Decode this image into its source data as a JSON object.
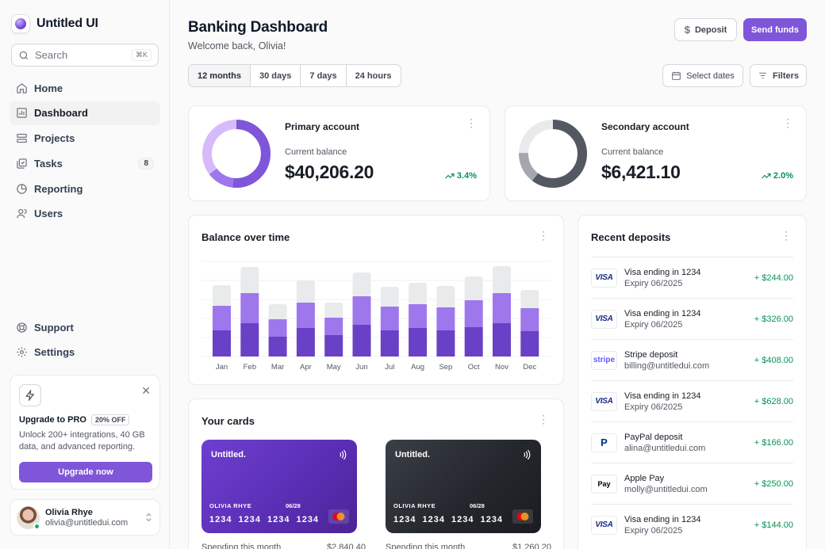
{
  "brand": {
    "name": "Untitled UI"
  },
  "search": {
    "placeholder": "Search",
    "shortcut": "⌘K"
  },
  "nav": [
    {
      "label": "Home",
      "icon": "home-icon"
    },
    {
      "label": "Dashboard",
      "icon": "bar-chart-icon",
      "active": true
    },
    {
      "label": "Projects",
      "icon": "layers-icon"
    },
    {
      "label": "Tasks",
      "icon": "check-square-icon",
      "badge": "8"
    },
    {
      "label": "Reporting",
      "icon": "pie-chart-icon"
    },
    {
      "label": "Users",
      "icon": "users-icon"
    }
  ],
  "nav_footer": [
    {
      "label": "Support",
      "icon": "life-buoy-icon"
    },
    {
      "label": "Settings",
      "icon": "gear-icon"
    }
  ],
  "promo": {
    "title": "Upgrade to PRO",
    "tag": "20% OFF",
    "text": "Unlock 200+ integrations, 40 GB data, and advanced reporting.",
    "button": "Upgrade now"
  },
  "user": {
    "name": "Olivia Rhye",
    "email": "olivia@untitledui.com"
  },
  "header": {
    "title": "Banking Dashboard",
    "subtitle": "Welcome back, Olivia!",
    "deposit": "Deposit",
    "send": "Send funds"
  },
  "filters": {
    "ranges": [
      "12 months",
      "30 days",
      "7 days",
      "24 hours"
    ],
    "active_range": "12 months",
    "select_dates": "Select dates",
    "filters": "Filters"
  },
  "accounts": [
    {
      "title": "Primary account",
      "label": "Current balance",
      "balance": "$40,206.20",
      "change": "3.4%",
      "colors": [
        "#7f56d9",
        "#9e77ed",
        "#d6bbfb"
      ]
    },
    {
      "title": "Secondary account",
      "label": "Current balance",
      "balance": "$6,421.10",
      "change": "2.0%",
      "colors": [
        "#535862",
        "#a4a7ae",
        "#e9eaeb"
      ]
    }
  ],
  "balance_chart": {
    "title": "Balance over time",
    "chart_data": {
      "type": "bar",
      "stacked": true,
      "categories": [
        "Jan",
        "Feb",
        "Mar",
        "Apr",
        "May",
        "Jun",
        "Jul",
        "Aug",
        "Sep",
        "Oct",
        "Nov",
        "Dec"
      ],
      "series": [
        {
          "values": [
            33,
            42,
            25,
            36,
            27,
            40,
            33,
            36,
            33,
            37,
            42,
            32
          ],
          "color": "#6941c6"
        },
        {
          "values": [
            31,
            38,
            22,
            32,
            22,
            36,
            30,
            30,
            29,
            34,
            38,
            29
          ],
          "color": "#9e77ed"
        },
        {
          "values": [
            26,
            33,
            19,
            28,
            19,
            30,
            25,
            27,
            27,
            30,
            34,
            23
          ],
          "color": "#e9eaeb"
        }
      ],
      "ylim": [
        0,
        120
      ],
      "grid": true
    }
  },
  "cards_section": {
    "title": "Your cards",
    "cards": [
      {
        "brand": "Untitled.",
        "holder": "OLIVIA RHYE",
        "expiry": "06/28",
        "number": "1234 1234 1234 1234",
        "style": "purple",
        "spend_label": "Spending this month",
        "spend_value": "$2,840.40"
      },
      {
        "brand": "Untitled.",
        "holder": "OLIVIA RHYE",
        "expiry": "06/28",
        "number": "1234 1234 1234 1234",
        "style": "dark",
        "spend_label": "Spending this month",
        "spend_value": "$1,260.20"
      }
    ]
  },
  "deposits": {
    "title": "Recent deposits",
    "items": [
      {
        "logo": "VISA",
        "kind": "visa",
        "name": "Visa ending in 1234",
        "sub": "Expiry 06/2025",
        "amount": "+ $244.00"
      },
      {
        "logo": "VISA",
        "kind": "visa",
        "name": "Visa ending in 1234",
        "sub": "Expiry 06/2025",
        "amount": "+ $326.00"
      },
      {
        "logo": "stripe",
        "kind": "stripe",
        "name": "Stripe deposit",
        "sub": "billing@untitledui.com",
        "amount": "+ $408.00"
      },
      {
        "logo": "VISA",
        "kind": "visa",
        "name": "Visa ending in 1234",
        "sub": "Expiry 06/2025",
        "amount": "+ $628.00"
      },
      {
        "logo": "P",
        "kind": "paypal",
        "name": "PayPal deposit",
        "sub": "alina@untitledui.com",
        "amount": "+ $166.00"
      },
      {
        "logo": "Pay",
        "kind": "apple",
        "name": "Apple Pay",
        "sub": "molly@untitledui.com",
        "amount": "+ $250.00"
      },
      {
        "logo": "VISA",
        "kind": "visa",
        "name": "Visa ending in 1234",
        "sub": "Expiry 06/2025",
        "amount": "+ $144.00"
      }
    ]
  }
}
